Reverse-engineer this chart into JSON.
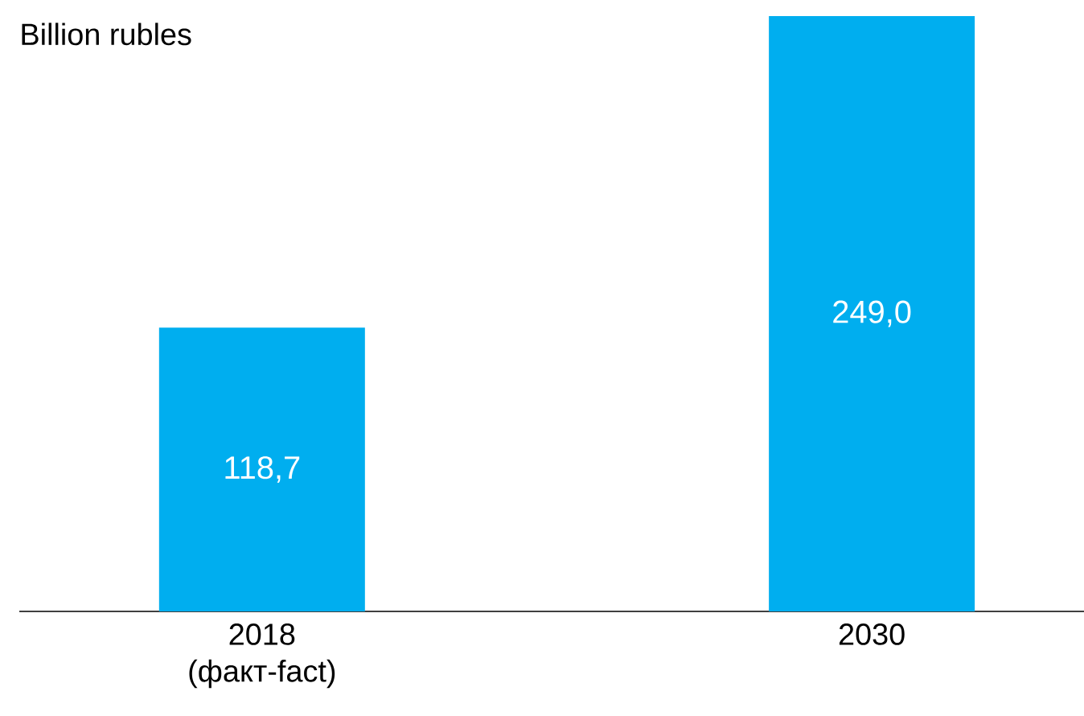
{
  "chart_data": {
    "type": "bar",
    "ylabel": "Billion rubles",
    "categories": [
      "2018 (факт-fact)",
      "2030"
    ],
    "values": [
      118.7,
      249.0
    ],
    "value_labels": [
      "118,7",
      "249,0"
    ],
    "color": "#00aeef"
  }
}
